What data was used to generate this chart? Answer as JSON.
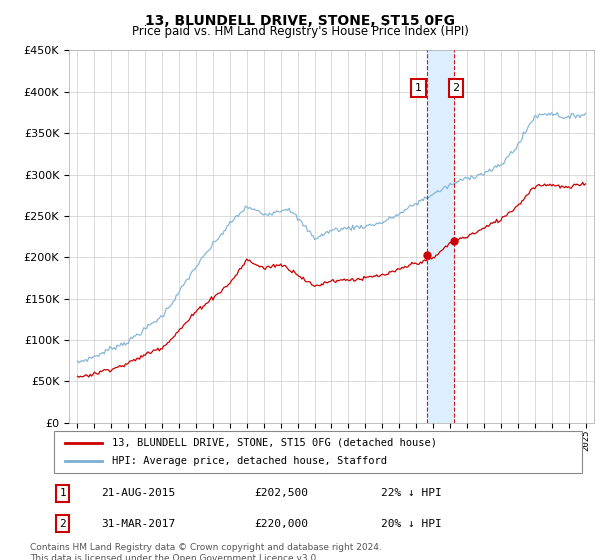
{
  "title": "13, BLUNDELL DRIVE, STONE, ST15 0FG",
  "subtitle": "Price paid vs. HM Land Registry's House Price Index (HPI)",
  "footer": "Contains HM Land Registry data © Crown copyright and database right 2024.\nThis data is licensed under the Open Government Licence v3.0.",
  "legend_line1": "13, BLUNDELL DRIVE, STONE, ST15 0FG (detached house)",
  "legend_line2": "HPI: Average price, detached house, Stafford",
  "transaction1_date": "21-AUG-2015",
  "transaction1_price": "£202,500",
  "transaction1_hpi": "22% ↓ HPI",
  "transaction2_date": "31-MAR-2017",
  "transaction2_price": "£220,000",
  "transaction2_hpi": "20% ↓ HPI",
  "vline1_year": 2015.64,
  "vline2_year": 2017.25,
  "marker1_value": 202500,
  "marker2_value": 220000,
  "ylim": [
    0,
    450000
  ],
  "xlim_start": 1994.5,
  "xlim_end": 2025.5,
  "red_color": "#cc0000",
  "blue_color": "#7ab0d4",
  "shade_color": "#ddeeff",
  "grid_color": "#cccccc",
  "bg_color": "#ffffff"
}
